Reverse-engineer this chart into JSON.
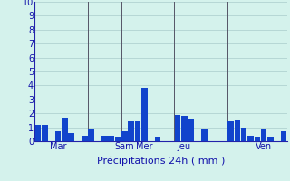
{
  "values": [
    1.2,
    1.2,
    0.0,
    0.7,
    1.7,
    0.6,
    0.0,
    0.4,
    0.9,
    0.0,
    0.4,
    0.4,
    0.3,
    0.7,
    1.4,
    1.4,
    3.8,
    0.0,
    0.3,
    0.0,
    0.0,
    1.9,
    1.8,
    1.6,
    0.0,
    0.9,
    0.0,
    0.0,
    0.0,
    1.4,
    1.5,
    1.0,
    0.4,
    0.3,
    0.9,
    0.3,
    0.0,
    0.7
  ],
  "day_labels": [
    "Mar",
    "Sam",
    "Mer",
    "Jeu",
    "Ven"
  ],
  "day_tick_positions": [
    3,
    13,
    16,
    22,
    34
  ],
  "day_vline_positions": [
    7.5,
    12.5,
    20.5,
    28.5
  ],
  "bar_color": "#1144cc",
  "bg_color": "#d4f2ec",
  "grid_color": "#aacccc",
  "label_color": "#1111aa",
  "xlabel": "Précipitations 24h ( mm )",
  "ylim": [
    0,
    10
  ],
  "yticks": [
    0,
    1,
    2,
    3,
    4,
    5,
    6,
    7,
    8,
    9,
    10
  ],
  "figsize": [
    3.2,
    2.0
  ],
  "dpi": 100
}
